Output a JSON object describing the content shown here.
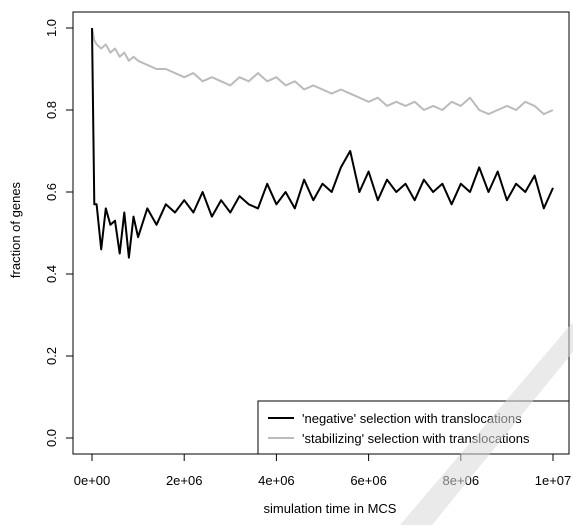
{
  "chart_data": {
    "type": "line",
    "xlabel": "simulation time in MCS",
    "ylabel": "fraction of genes",
    "xlim": [
      0,
      10000000
    ],
    "ylim": [
      0,
      1.0
    ],
    "x_ticks": [
      0,
      2000000,
      4000000,
      6000000,
      8000000,
      10000000
    ],
    "x_tick_labels": [
      "0e+00",
      "2e+06",
      "4e+06",
      "6e+06",
      "8e+06",
      "1e+07"
    ],
    "y_ticks": [
      0.0,
      0.2,
      0.4,
      0.6,
      0.8,
      1.0
    ],
    "y_tick_labels": [
      "0.0",
      "0.2",
      "0.4",
      "0.6",
      "0.8",
      "1.0"
    ],
    "legend_position": "bottom-right",
    "grid": false,
    "series": [
      {
        "name": "'negative' selection with translocations",
        "color": "#000000",
        "x": [
          0,
          50000,
          100000,
          200000,
          300000,
          400000,
          500000,
          600000,
          700000,
          800000,
          900000,
          1000000,
          1200000,
          1400000,
          1600000,
          1800000,
          2000000,
          2200000,
          2400000,
          2600000,
          2800000,
          3000000,
          3200000,
          3400000,
          3600000,
          3800000,
          4000000,
          4200000,
          4400000,
          4600000,
          4800000,
          5000000,
          5200000,
          5400000,
          5600000,
          5800000,
          6000000,
          6200000,
          6400000,
          6600000,
          6800000,
          7000000,
          7200000,
          7400000,
          7600000,
          7800000,
          8000000,
          8200000,
          8400000,
          8600000,
          8800000,
          9000000,
          9200000,
          9400000,
          9600000,
          9800000,
          10000000
        ],
        "values": [
          1.0,
          0.57,
          0.57,
          0.46,
          0.56,
          0.52,
          0.53,
          0.45,
          0.55,
          0.44,
          0.54,
          0.49,
          0.56,
          0.52,
          0.57,
          0.55,
          0.58,
          0.55,
          0.6,
          0.54,
          0.58,
          0.55,
          0.59,
          0.57,
          0.56,
          0.62,
          0.57,
          0.6,
          0.56,
          0.63,
          0.58,
          0.62,
          0.6,
          0.66,
          0.7,
          0.6,
          0.65,
          0.58,
          0.63,
          0.6,
          0.62,
          0.58,
          0.63,
          0.6,
          0.62,
          0.57,
          0.62,
          0.6,
          0.66,
          0.6,
          0.65,
          0.58,
          0.62,
          0.6,
          0.64,
          0.56,
          0.61
        ]
      },
      {
        "name": "'stabilizing' selection with translocations",
        "color": "#bbbbbb",
        "x": [
          0,
          50000,
          100000,
          200000,
          300000,
          400000,
          500000,
          600000,
          700000,
          800000,
          900000,
          1000000,
          1200000,
          1400000,
          1600000,
          1800000,
          2000000,
          2200000,
          2400000,
          2600000,
          2800000,
          3000000,
          3200000,
          3400000,
          3600000,
          3800000,
          4000000,
          4200000,
          4400000,
          4600000,
          4800000,
          5000000,
          5200000,
          5400000,
          5600000,
          5800000,
          6000000,
          6200000,
          6400000,
          6600000,
          6800000,
          7000000,
          7200000,
          7400000,
          7600000,
          7800000,
          8000000,
          8200000,
          8400000,
          8600000,
          8800000,
          9000000,
          9200000,
          9400000,
          9600000,
          9800000,
          10000000
        ],
        "values": [
          1.0,
          0.97,
          0.96,
          0.95,
          0.96,
          0.94,
          0.95,
          0.93,
          0.94,
          0.92,
          0.93,
          0.92,
          0.91,
          0.9,
          0.9,
          0.89,
          0.88,
          0.89,
          0.87,
          0.88,
          0.87,
          0.86,
          0.88,
          0.87,
          0.89,
          0.87,
          0.88,
          0.86,
          0.87,
          0.85,
          0.86,
          0.85,
          0.84,
          0.85,
          0.84,
          0.83,
          0.82,
          0.83,
          0.81,
          0.82,
          0.81,
          0.82,
          0.8,
          0.81,
          0.8,
          0.82,
          0.81,
          0.83,
          0.8,
          0.79,
          0.8,
          0.81,
          0.8,
          0.82,
          0.81,
          0.79,
          0.8
        ]
      }
    ]
  },
  "colors": {
    "negative_series": "#000000",
    "stabilizing_series": "#bbbbbb",
    "axis": "#000000",
    "watermark": "#d8d8d8"
  }
}
